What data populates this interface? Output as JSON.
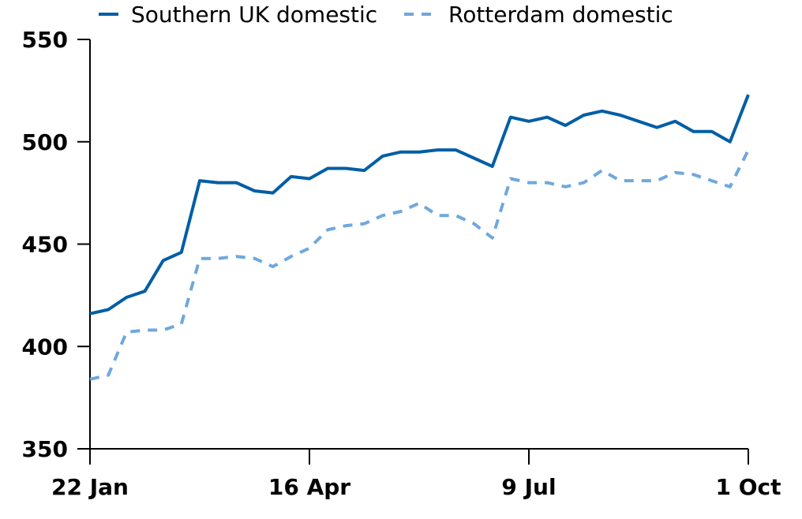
{
  "chart_data": {
    "type": "line",
    "title": "",
    "xlabel": "",
    "ylabel": "",
    "ylim": [
      350,
      550
    ],
    "yticks": [
      350,
      400,
      450,
      500,
      550
    ],
    "xticks": [
      "22 Jan",
      "16 Apr",
      "9 Jul",
      "1 Oct"
    ],
    "x": [
      "22 Jan",
      "29 Jan",
      "5 Feb",
      "12 Feb",
      "19 Feb",
      "26 Feb",
      "5 Mar",
      "12 Mar",
      "19 Mar",
      "26 Mar",
      "2 Apr",
      "9 Apr",
      "16 Apr",
      "23 Apr",
      "30 Apr",
      "7 May",
      "14 May",
      "21 May",
      "28 May",
      "4 Jun",
      "11 Jun",
      "18 Jun",
      "25 Jun",
      "2 Jul",
      "9 Jul",
      "16 Jul",
      "23 Jul",
      "30 Jul",
      "6 Aug",
      "13 Aug",
      "20 Aug",
      "27 Aug",
      "3 Sep",
      "10 Sep",
      "17 Sep",
      "24 Sep",
      "1 Oct"
    ],
    "grid": false,
    "legend": "top",
    "series": [
      {
        "name": "Southern UK domestic",
        "color": "#005ea5",
        "style": "solid",
        "values": [
          416,
          418,
          424,
          427,
          442,
          446,
          481,
          480,
          480,
          476,
          475,
          483,
          482,
          487,
          487,
          486,
          493,
          495,
          495,
          496,
          496,
          492,
          488,
          512,
          510,
          512,
          508,
          513,
          515,
          513,
          510,
          507,
          510,
          505,
          505,
          500,
          523
        ]
      },
      {
        "name": "Rotterdam domestic",
        "color": "#6fa8dc",
        "style": "dashed",
        "values": [
          384,
          386,
          407,
          408,
          408,
          411,
          443,
          443,
          444,
          443,
          439,
          444,
          448,
          457,
          459,
          460,
          464,
          466,
          470,
          464,
          464,
          460,
          453,
          482,
          480,
          480,
          478,
          480,
          486,
          481,
          481,
          481,
          485,
          484,
          481,
          478,
          496
        ]
      }
    ]
  }
}
